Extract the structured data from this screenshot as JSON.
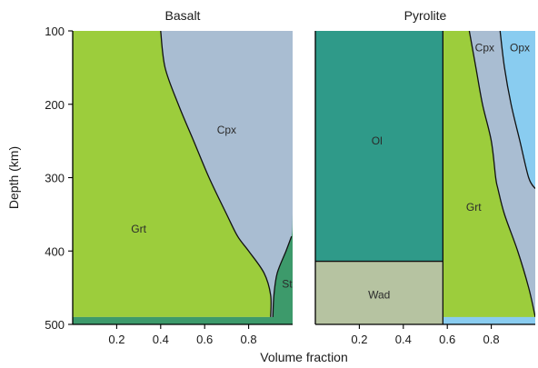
{
  "chart_data": [
    {
      "type": "area",
      "title": "Basalt",
      "ylabel": "Depth (km)",
      "xlabel": "",
      "xlim": [
        0,
        1
      ],
      "ylim": [
        500,
        100
      ],
      "xticks": [
        "0.2",
        "0.4",
        "0.6",
        "0.8"
      ],
      "yticks": [
        "100",
        "200",
        "300",
        "400",
        "500"
      ],
      "depth": [
        100,
        150,
        200,
        250,
        300,
        350,
        380,
        400,
        430,
        460,
        490
      ],
      "series": [
        {
          "name": "Grt",
          "color": "#9ccd3c",
          "upper": [
            0.4,
            0.42,
            0.48,
            0.55,
            0.62,
            0.7,
            0.75,
            0.8,
            0.87,
            0.9,
            0.9
          ]
        },
        {
          "name": "Cpx",
          "color": "#a9bdd2",
          "upper": [
            1.0,
            1.0,
            1.0,
            1.0,
            1.0,
            1.0,
            0.995,
            0.97,
            0.93,
            0.915,
            0.91
          ]
        },
        {
          "name": "St",
          "color": "#3d9a6b",
          "upper": [
            1.0,
            1.0,
            1.0,
            1.0,
            1.0,
            1.0,
            1.0,
            1.0,
            1.0,
            1.0,
            1.0
          ]
        }
      ]
    },
    {
      "type": "area",
      "title": "Pyrolite",
      "ylabel": "",
      "xlabel": "Volume fraction",
      "xlim": [
        0,
        1
      ],
      "ylim": [
        500,
        100
      ],
      "xticks": [
        "0.2",
        "0.4",
        "0.6",
        "0.8"
      ],
      "yticks": [],
      "depth": [
        100,
        150,
        200,
        250,
        300,
        315,
        350,
        400,
        450,
        490
      ],
      "series": [
        {
          "name": "Ol",
          "color": "#2f9a89",
          "upper": [
            0.58,
            0.58,
            0.58,
            0.58,
            0.58,
            0.58,
            0.58,
            0.58,
            0.0,
            0.0
          ]
        },
        {
          "name": "Wad",
          "color": "#b6c3a1",
          "upper": [
            0.0,
            0.0,
            0.0,
            0.0,
            0.0,
            0.0,
            0.0,
            0.0,
            0.58,
            0.58
          ]
        },
        {
          "name": "Grt",
          "color": "#9ccd3c",
          "upper": [
            0.7,
            0.73,
            0.76,
            0.8,
            0.82,
            0.83,
            0.86,
            0.92,
            0.97,
            1.0
          ]
        },
        {
          "name": "Cpx",
          "color": "#a9bdd2",
          "upper": [
            0.84,
            0.86,
            0.89,
            0.93,
            0.97,
            1.0,
            1.0,
            1.0,
            1.0,
            1.0
          ]
        },
        {
          "name": "Opx",
          "color": "#89ccf0",
          "upper": [
            1.0,
            1.0,
            1.0,
            1.0,
            1.0,
            1.0,
            1.0,
            1.0,
            1.0,
            1.0
          ]
        }
      ],
      "ol_wad_boundary_depth": 414
    }
  ]
}
